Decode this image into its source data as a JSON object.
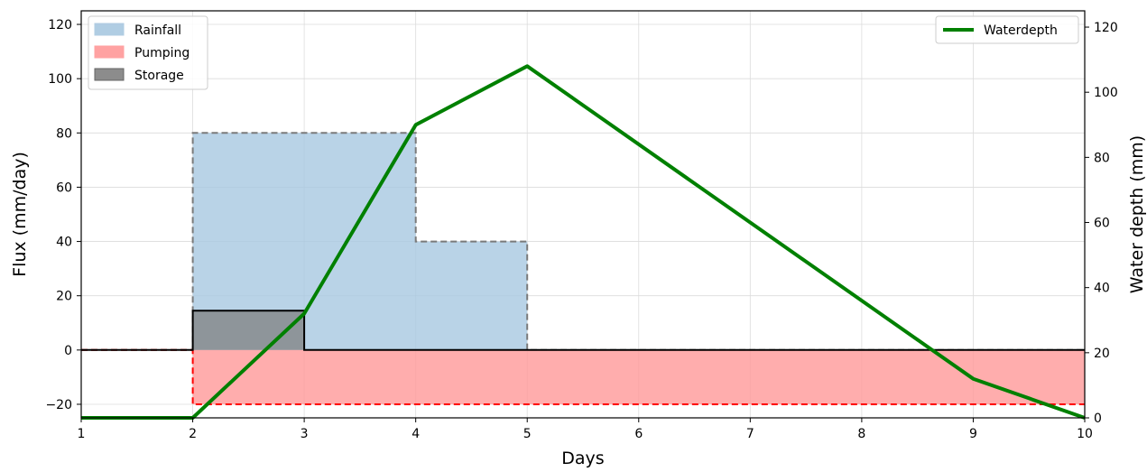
{
  "chart_data": {
    "type": "area",
    "xlabel": "Days",
    "ylabel_left": "Flux (mm/day)",
    "ylabel_right": "Water depth (mm)",
    "xlim": [
      1,
      10
    ],
    "ylim_left": [
      -25,
      125
    ],
    "ylim_right": [
      0,
      125
    ],
    "grid": true,
    "x_ticks": [
      1,
      2,
      3,
      4,
      5,
      6,
      7,
      8,
      9,
      10
    ],
    "y_left_ticks": [
      -20,
      0,
      20,
      40,
      60,
      80,
      100,
      120
    ],
    "y_right_ticks": [
      0,
      20,
      40,
      60,
      80,
      100,
      120
    ],
    "legend_left": {
      "placement": "top-left",
      "entries": [
        "Rainfall",
        "Pumping",
        "Storage"
      ]
    },
    "legend_right": {
      "placement": "top-right",
      "entries": [
        "Waterdepth"
      ]
    },
    "series": [
      {
        "name": "Rainfall",
        "axis": "left",
        "kind": "step",
        "points": [
          [
            1,
            0
          ],
          [
            2,
            0
          ],
          [
            2,
            80
          ],
          [
            4,
            80
          ],
          [
            4,
            40
          ],
          [
            5,
            40
          ],
          [
            5,
            0
          ],
          [
            10,
            0
          ]
        ],
        "color": "#a8c8e1"
      },
      {
        "name": "Pumping",
        "axis": "left",
        "kind": "step",
        "points": [
          [
            1,
            0
          ],
          [
            2,
            0
          ],
          [
            2,
            -20
          ],
          [
            10,
            -20
          ]
        ],
        "color": "#ff9999",
        "edge_color": "#ff0000"
      },
      {
        "name": "Storage",
        "axis": "left",
        "kind": "step",
        "points": [
          [
            1,
            0
          ],
          [
            2,
            0
          ],
          [
            2,
            14.5
          ],
          [
            3,
            14.5
          ],
          [
            3,
            0
          ],
          [
            10,
            0
          ]
        ],
        "color": "#808080",
        "edge_color": "#000000"
      },
      {
        "name": "Waterdepth",
        "axis": "right",
        "kind": "line",
        "x": [
          1,
          2,
          3,
          4,
          5,
          9,
          10
        ],
        "y": [
          0,
          0,
          32,
          90,
          108,
          12,
          0
        ],
        "color": "#008000"
      }
    ]
  }
}
